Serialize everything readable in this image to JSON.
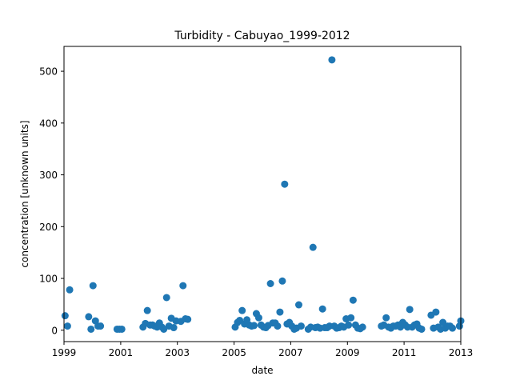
{
  "chart_data": {
    "type": "scatter",
    "title": "Turbidity - Cabuyao_1999-2012",
    "xlabel": "date",
    "ylabel": "concentration [unknown units]",
    "xlim": [
      "1999-01-01",
      "2013-01-01"
    ],
    "ylim": [
      -22,
      548
    ],
    "x_ticks": [
      "1999",
      "2001",
      "2003",
      "2005",
      "2007",
      "2009",
      "2011",
      "2013"
    ],
    "y_ticks": [
      0,
      100,
      200,
      300,
      400,
      500
    ],
    "grid": false,
    "legend": "none",
    "marker_color": "#1f77b4",
    "series": [
      {
        "x": [
          "1999-01-15",
          "1999-02-15",
          "1999-03-15",
          "1999-11-15",
          "1999-12-15",
          "2000-01-10",
          "2000-02-10",
          "2000-03-15",
          "2000-04-15",
          "2000-11-15",
          "2000-12-15",
          "2001-01-15",
          "2001-10-15",
          "2001-11-15",
          "2001-12-10",
          "2002-01-15",
          "2002-02-15",
          "2002-03-15",
          "2002-04-15",
          "2002-05-15",
          "2002-06-15",
          "2002-07-10",
          "2002-08-15",
          "2002-09-15",
          "2002-10-15",
          "2002-11-15",
          "2002-12-15",
          "2003-02-15",
          "2003-03-15",
          "2003-04-15",
          "2003-05-15",
          "2005-01-15",
          "2005-02-15",
          "2005-03-15",
          "2005-04-15",
          "2005-05-15",
          "2005-06-15",
          "2005-07-15",
          "2005-08-15",
          "2005-09-15",
          "2005-10-15",
          "2005-11-15",
          "2005-12-15",
          "2006-01-15",
          "2006-02-15",
          "2006-03-15",
          "2006-04-15",
          "2006-05-15",
          "2006-06-15",
          "2006-07-15",
          "2006-08-15",
          "2006-09-15",
          "2006-10-15",
          "2006-11-15",
          "2006-12-15",
          "2007-01-15",
          "2007-02-15",
          "2007-03-15",
          "2007-04-15",
          "2007-05-15",
          "2007-08-15",
          "2007-09-15",
          "2007-10-15",
          "2007-11-15",
          "2007-12-15",
          "2008-01-15",
          "2008-02-15",
          "2008-03-15",
          "2008-04-15",
          "2008-05-15",
          "2008-06-15",
          "2008-07-15",
          "2008-08-15",
          "2008-09-15",
          "2008-10-15",
          "2008-11-15",
          "2008-12-15",
          "2009-01-15",
          "2009-02-15",
          "2009-03-15",
          "2009-04-15",
          "2009-05-15",
          "2009-06-15",
          "2009-07-15",
          "2010-03-15",
          "2010-04-15",
          "2010-05-15",
          "2010-06-15",
          "2010-07-15",
          "2010-08-15",
          "2010-09-15",
          "2010-10-15",
          "2010-11-15",
          "2010-12-15",
          "2011-01-15",
          "2011-02-15",
          "2011-03-15",
          "2011-04-15",
          "2011-05-15",
          "2011-06-15",
          "2011-07-15",
          "2011-08-15",
          "2011-12-15",
          "2012-01-15",
          "2012-02-15",
          "2012-03-15",
          "2012-04-15",
          "2012-05-15",
          "2012-06-15",
          "2012-07-15",
          "2012-08-15",
          "2012-09-15",
          "2012-12-15",
          "2013-01-01"
        ],
        "y": [
          28,
          8,
          78,
          26,
          2,
          86,
          18,
          8,
          8,
          2,
          2,
          2,
          6,
          13,
          38,
          10,
          10,
          8,
          6,
          14,
          6,
          2,
          63,
          8,
          23,
          5,
          18,
          17,
          86,
          22,
          21,
          6,
          15,
          19,
          38,
          12,
          20,
          10,
          8,
          9,
          32,
          24,
          10,
          6,
          5,
          9,
          90,
          14,
          14,
          8,
          35,
          95,
          282,
          12,
          15,
          8,
          2,
          4,
          49,
          8,
          2,
          6,
          160,
          5,
          6,
          4,
          41,
          5,
          5,
          8,
          522,
          8,
          4,
          5,
          8,
          6,
          22,
          10,
          24,
          58,
          10,
          4,
          3,
          6,
          8,
          10,
          24,
          6,
          4,
          8,
          8,
          10,
          6,
          15,
          10,
          6,
          40,
          6,
          10,
          12,
          4,
          2,
          29,
          4,
          35,
          6,
          2,
          15,
          4,
          8,
          8,
          4,
          8,
          18
        ]
      }
    ]
  }
}
